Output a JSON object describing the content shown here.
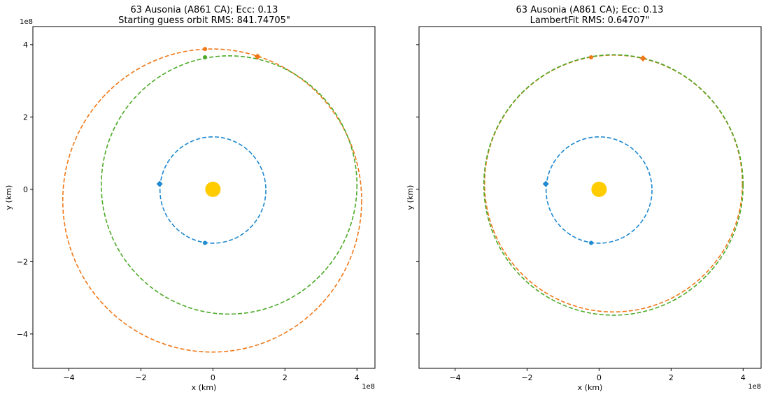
{
  "colors": {
    "earth": "#1f8ad0",
    "starting_guess": "#f07818",
    "asteroid": "#4caa28",
    "sun": "#ffcc00"
  },
  "chart_data": [
    {
      "type": "scatter",
      "title": "63 Ausonia (A861 CA); Ecc: 0.13",
      "subtitle": "Starting guess orbit RMS: 841.74705\"",
      "xlabel": "x (km)",
      "ylabel": "y (km)",
      "xlim": [
        -5.0,
        4.5
      ],
      "ylim": [
        -4.95,
        4.5
      ],
      "x_ticks": [
        -4,
        -2,
        0,
        2,
        4
      ],
      "y_ticks": [
        -4,
        -2,
        0,
        2,
        4
      ],
      "x_tick_labels": [
        "−4",
        "−2",
        "0",
        "2",
        "4"
      ],
      "y_tick_labels": [
        "−4",
        "−2",
        "0",
        "2",
        "4"
      ],
      "x_offset_label": "1e8",
      "y_offset_label": "1e8",
      "show_y_tick_labels": true,
      "units_scale": "1e8 km",
      "series": [
        {
          "color_key": "earth",
          "kind": "ellipse",
          "cx": 0.0,
          "cy": -0.02,
          "rx": 1.47,
          "ry": 1.47,
          "dashed": true
        },
        {
          "color_key": "starting_guess",
          "kind": "ellipse",
          "cx": -0.02,
          "cy": -0.31,
          "rx": 4.15,
          "ry": 4.19,
          "dashed": true
        },
        {
          "color_key": "asteroid",
          "kind": "ellipse",
          "cx": 0.45,
          "cy": 0.12,
          "rx": 3.55,
          "ry": 3.57,
          "dashed": true
        }
      ],
      "markers": [
        {
          "color_key": "earth",
          "shape": "diamond",
          "x": -1.48,
          "y": 0.15
        },
        {
          "color_key": "earth",
          "shape": "circle",
          "x": -0.22,
          "y": -1.48
        },
        {
          "color_key": "starting_guess",
          "shape": "diamond",
          "x": 1.24,
          "y": 3.67
        },
        {
          "color_key": "starting_guess",
          "shape": "circle",
          "x": -0.22,
          "y": 3.88
        },
        {
          "color_key": "asteroid",
          "shape": "circle",
          "x": -0.22,
          "y": 3.65
        }
      ],
      "sun": {
        "color_key": "sun",
        "x": 0.0,
        "y": 0.0
      }
    },
    {
      "type": "scatter",
      "title": "63 Ausonia (A861 CA); Ecc: 0.13",
      "subtitle": "LambertFit RMS: 0.64707\"",
      "xlabel": "x (km)",
      "ylabel": "y (km)",
      "xlim": [
        -5.0,
        4.5
      ],
      "ylim": [
        -4.95,
        4.5
      ],
      "x_ticks": [
        -4,
        -2,
        0,
        2,
        4
      ],
      "y_ticks": [
        -4,
        -2,
        0,
        2,
        4
      ],
      "x_tick_labels": [
        "−4",
        "−2",
        "0",
        "2",
        "4"
      ],
      "y_tick_labels": [],
      "x_offset_label": "1e8",
      "show_y_tick_labels": false,
      "units_scale": "1e8 km",
      "series": [
        {
          "color_key": "earth",
          "kind": "ellipse",
          "cx": 0.0,
          "cy": -0.02,
          "rx": 1.47,
          "ry": 1.47,
          "dashed": true
        },
        {
          "color_key": "starting_guess",
          "kind": "ellipse",
          "cx": 0.4,
          "cy": 0.16,
          "rx": 3.58,
          "ry": 3.55,
          "dashed": true
        },
        {
          "color_key": "asteroid",
          "kind": "ellipse",
          "cx": 0.4,
          "cy": 0.12,
          "rx": 3.6,
          "ry": 3.6,
          "dashed": true
        }
      ],
      "markers": [
        {
          "color_key": "earth",
          "shape": "diamond",
          "x": -1.48,
          "y": 0.15
        },
        {
          "color_key": "earth",
          "shape": "circle",
          "x": -0.22,
          "y": -1.48
        },
        {
          "color_key": "starting_guess",
          "shape": "diamond",
          "x": 1.22,
          "y": 3.62
        },
        {
          "color_key": "starting_guess",
          "shape": "circle",
          "x": -0.22,
          "y": 3.65
        }
      ],
      "sun": {
        "color_key": "sun",
        "x": 0.0,
        "y": 0.0
      }
    }
  ]
}
